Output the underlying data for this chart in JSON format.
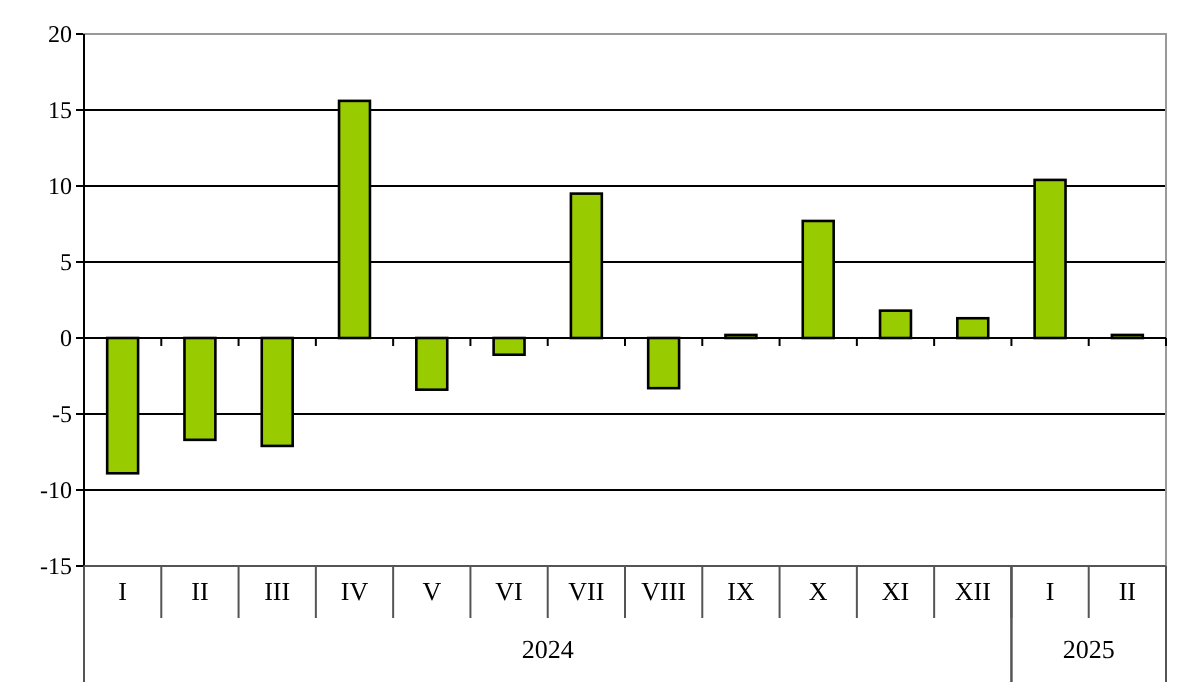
{
  "chart_data": {
    "type": "bar",
    "categories": [
      "I",
      "II",
      "III",
      "IV",
      "V",
      "VI",
      "VII",
      "VIII",
      "IX",
      "X",
      "XI",
      "XII",
      "I",
      "II"
    ],
    "values": [
      -8.9,
      -6.7,
      -7.1,
      15.6,
      -3.4,
      -1.1,
      9.5,
      -3.3,
      0.2,
      7.7,
      1.8,
      1.3,
      10.4,
      0.2
    ],
    "color": "#99cc00",
    "ylim": [
      -15,
      20
    ],
    "yticks": [
      -15,
      -10,
      -5,
      0,
      5,
      10,
      15,
      20
    ],
    "grid": "y",
    "annotations": [
      "2024",
      "2025"
    ]
  }
}
